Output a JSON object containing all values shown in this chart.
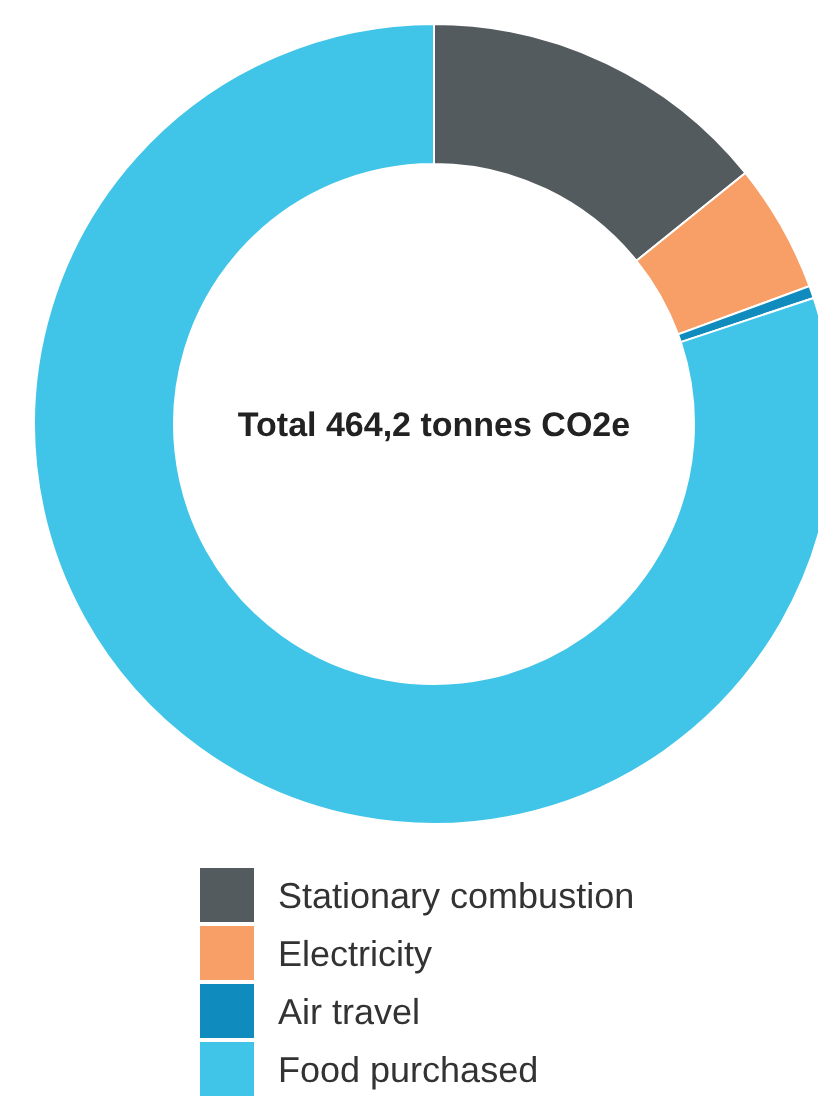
{
  "chart_data": {
    "type": "donut",
    "categories": [
      "Stationary combustion",
      "Electricity",
      "Air travel",
      "Food purchased"
    ],
    "values": [
      14.2,
      5.2,
      0.5,
      80.1
    ],
    "colors": [
      "#545b5f",
      "#f79f66",
      "#0f8cbd",
      "#40c4e8"
    ],
    "annotations": [
      "Total 464,2 tonnes CO2e"
    ],
    "legend": "bottom"
  }
}
